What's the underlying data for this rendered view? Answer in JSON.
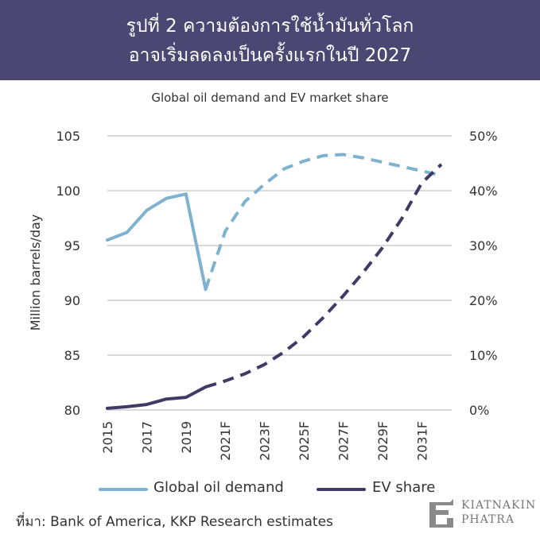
{
  "header": {
    "line1": "รูปที่ 2 ความต้องการใช้น้ำมันทั่วโลก",
    "line2": "อาจเริ่มลดลงเป็นครั้งแรกในปี 2027"
  },
  "legend": {
    "oil": "Global oil demand",
    "ev": "EV share"
  },
  "source": "ที่มา: Bank of America, KKP Research estimates",
  "logo": {
    "line1": "KIATNAKIN",
    "line2": "PHATRA"
  },
  "colors": {
    "header_bg": "#4a4773",
    "oil": "#7fb2cf",
    "ev": "#403a66",
    "grid": "#d9d9d9"
  },
  "chart_data": {
    "type": "line",
    "title": "Global oil demand and EV market share",
    "ylabel": "Million barrels/day",
    "x": [
      "2015",
      "2016",
      "2017",
      "2018",
      "2019",
      "2020",
      "2021F",
      "2022F",
      "2023F",
      "2024F",
      "2025F",
      "2026F",
      "2027F",
      "2028F",
      "2029F",
      "2030F",
      "2031F",
      "2032F"
    ],
    "x_tick_labels": [
      "2015",
      "2017",
      "2019",
      "2021F",
      "2023F",
      "2025F",
      "2027F",
      "2029F",
      "2031F"
    ],
    "ylim": [
      80,
      105
    ],
    "y_ticks": [
      80,
      85,
      90,
      95,
      100,
      105
    ],
    "y2lim": [
      0,
      50
    ],
    "y2_ticks": [
      "0%",
      "10%",
      "20%",
      "30%",
      "40%",
      "50%"
    ],
    "grid": true,
    "legend_position": "bottom",
    "series": [
      {
        "name": "Global oil demand",
        "axis": "left",
        "values": [
          95.5,
          96.2,
          98.2,
          99.3,
          99.7,
          91.0,
          96.3,
          99.0,
          100.6,
          102.0,
          102.7,
          103.2,
          103.3,
          103.0,
          102.6,
          102.2,
          101.8,
          101.4
        ],
        "solid_until": "2020",
        "dashed_from": "2020"
      },
      {
        "name": "EV share",
        "axis": "right",
        "values": [
          0.3,
          0.6,
          1.0,
          2.0,
          2.3,
          4.2,
          5.3,
          6.6,
          8.3,
          10.6,
          13.4,
          16.9,
          20.8,
          25.0,
          29.6,
          35.0,
          41.4,
          44.8
        ],
        "solid_until": "2020",
        "dashed_from": "2020",
        "unit": "%"
      }
    ]
  }
}
